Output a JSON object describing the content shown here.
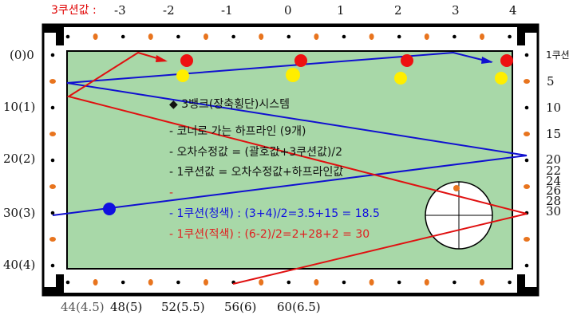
{
  "top_header": {
    "title": "3쿠션값 :",
    "values": [
      "-3",
      "-2",
      "-1",
      "0",
      "1",
      "2",
      "3",
      "4"
    ]
  },
  "left_labels": [
    "(0)0",
    "10(1)",
    "20(2)",
    "30(3)",
    "40(4)"
  ],
  "right_labels": [
    "1쿠션",
    "5",
    "10",
    "15",
    "20",
    "22",
    "24",
    "26",
    "28",
    "30"
  ],
  "bottom_labels": [
    "44(4.5)",
    "48(5)",
    "52(5.5)",
    "56(6)",
    "60(6.5)"
  ],
  "legend": {
    "title": "3뱅크(장축횡단)시스템",
    "line1": "- 코너로 가는 하프라인 (9개)",
    "line2": "- 오차수정값 = (괄호값+3쿠션값)/2",
    "line3": "- 1쿠션값 = 오차수정값+하프라인값",
    "line4": "-",
    "line5": "- 1쿠션(청색) : (3+4)/2=3.5+15 = 18.5",
    "line6": "- 1쿠션(적색) : (6-2)/2=2+28+2 = 30"
  },
  "colors": {
    "felt": "#a8d8a8",
    "rail": "#000000",
    "diamond": "#e8741e",
    "red_ball": "#ee1111",
    "yellow_ball": "#ffee00",
    "blue_ball": "#1010e0",
    "blue_path": "#1010d0",
    "red_path": "#e01010"
  }
}
